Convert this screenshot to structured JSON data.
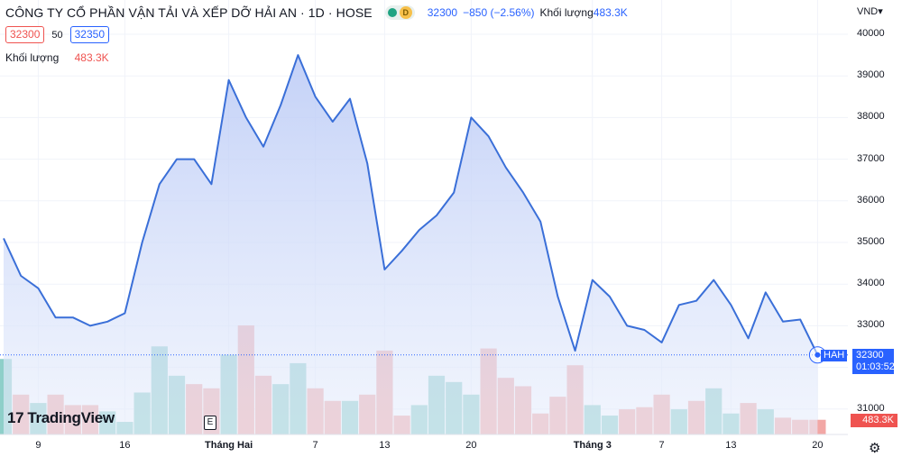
{
  "header": {
    "title": "CÔNG TY CỔ PHẦN VẬN TẢI VÀ XẾP DỠ HẢI AN · 1D · HOSE",
    "status_badge": "D",
    "last_price": "32300",
    "change": "−850 (−2.56%)",
    "volume_label": "Khối lượng",
    "volume_value": "483.3K"
  },
  "quote": {
    "bid": "32300",
    "spread": "50",
    "ask": "32350"
  },
  "volume_legend": {
    "label": "Khối lượng",
    "value": "483.3K"
  },
  "price_tag": {
    "symbol": "HAH",
    "price": "32300",
    "countdown": "01:03:52"
  },
  "volume_tag": "483.3K",
  "logo": {
    "mark": "17",
    "text": "TradingView"
  },
  "event_badge": "E",
  "colors": {
    "line": "#3a6fd8",
    "up_volume": "#8ecfc9",
    "down_volume": "#f2a7a5",
    "accent": "#2962ff",
    "down_text": "#ef5350"
  },
  "chart_data": {
    "type": "line",
    "currency": "VND",
    "x_labels": [
      {
        "text": "9",
        "index": 2
      },
      {
        "text": "16",
        "index": 7
      },
      {
        "text": "Tháng Hai",
        "index": 13,
        "bold": true
      },
      {
        "text": "7",
        "index": 18
      },
      {
        "text": "13",
        "index": 22
      },
      {
        "text": "20",
        "index": 27
      },
      {
        "text": "Tháng 3",
        "index": 34,
        "bold": true
      },
      {
        "text": "7",
        "index": 38
      },
      {
        "text": "13",
        "index": 42
      },
      {
        "text": "20",
        "index": 47
      }
    ],
    "y_ticks": [
      31000,
      32000,
      33000,
      34000,
      35000,
      36000,
      37000,
      38000,
      39000,
      40000
    ],
    "y_tick_labels": [
      "31000",
      "",
      "33000",
      "34000",
      "35000",
      "36000",
      "37000",
      "38000",
      "39000",
      "40000"
    ],
    "ylim": [
      30700,
      40300
    ],
    "series": [
      {
        "values": [
          35100,
          34200,
          33900,
          33200,
          33200,
          33000,
          33100,
          33300,
          35000,
          36400,
          37000,
          37000,
          36400,
          38900,
          38000,
          37300,
          38300,
          39500,
          38500,
          37900,
          38450,
          36900,
          34350,
          34800,
          35300,
          35650,
          36200,
          38000,
          37550,
          36800,
          36200,
          35500,
          33700,
          32400,
          34100,
          33700,
          33000,
          32900,
          32600,
          33500,
          33600,
          34100,
          33500,
          32700,
          33800,
          33100,
          33150,
          32300
        ]
      }
    ],
    "volume": {
      "values": [
        1.8,
        0.95,
        0.75,
        0.95,
        0.7,
        0.7,
        0.55,
        0.3,
        1.0,
        2.1,
        1.4,
        1.2,
        1.1,
        1.9,
        2.6,
        1.4,
        1.2,
        1.7,
        1.1,
        0.8,
        0.8,
        0.95,
        2.0,
        0.45,
        0.7,
        1.4,
        1.25,
        0.95,
        2.05,
        1.35,
        1.15,
        0.5,
        0.9,
        1.65,
        0.7,
        0.45,
        0.6,
        0.65,
        0.95,
        0.6,
        0.8,
        1.1,
        0.5,
        0.75,
        0.6,
        0.4,
        0.35,
        0.35
      ],
      "up": [
        1,
        0,
        1,
        0,
        0,
        0,
        1,
        1,
        1,
        1,
        1,
        0,
        0,
        1,
        0,
        0,
        1,
        1,
        0,
        0,
        1,
        0,
        0,
        0,
        1,
        1,
        1,
        1,
        0,
        0,
        0,
        0,
        0,
        0,
        1,
        1,
        0,
        0,
        0,
        1,
        0,
        1,
        1,
        0,
        1,
        0,
        0,
        0
      ]
    }
  }
}
